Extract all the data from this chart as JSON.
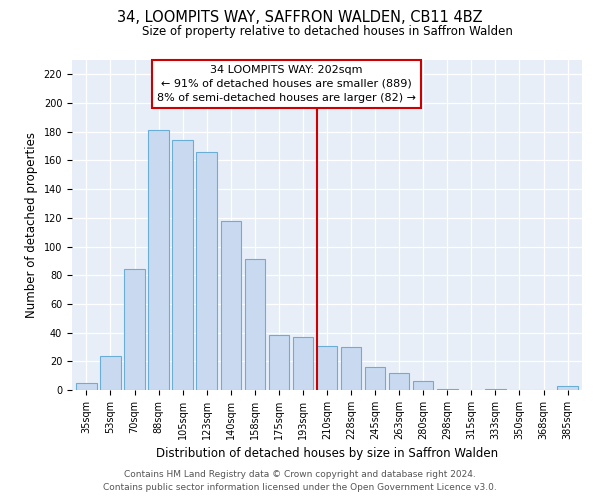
{
  "title": "34, LOOMPITS WAY, SAFFRON WALDEN, CB11 4BZ",
  "subtitle": "Size of property relative to detached houses in Saffron Walden",
  "xlabel": "Distribution of detached houses by size in Saffron Walden",
  "ylabel": "Number of detached properties",
  "bar_labels": [
    "35sqm",
    "53sqm",
    "70sqm",
    "88sqm",
    "105sqm",
    "123sqm",
    "140sqm",
    "158sqm",
    "175sqm",
    "193sqm",
    "210sqm",
    "228sqm",
    "245sqm",
    "263sqm",
    "280sqm",
    "298sqm",
    "315sqm",
    "333sqm",
    "350sqm",
    "368sqm",
    "385sqm"
  ],
  "bar_values": [
    5,
    24,
    84,
    181,
    174,
    166,
    118,
    91,
    38,
    37,
    31,
    30,
    16,
    12,
    6,
    1,
    0,
    1,
    0,
    0,
    3
  ],
  "bar_color": "#c9daf0",
  "bar_edge_color": "#6aaed6",
  "vline_color": "#cc0000",
  "annotation_title": "34 LOOMPITS WAY: 202sqm",
  "annotation_line1": "← 91% of detached houses are smaller (889)",
  "annotation_line2": "8% of semi-detached houses are larger (82) →",
  "ylim": [
    0,
    230
  ],
  "yticks": [
    0,
    20,
    40,
    60,
    80,
    100,
    120,
    140,
    160,
    180,
    200,
    220
  ],
  "footer1": "Contains HM Land Registry data © Crown copyright and database right 2024.",
  "footer2": "Contains public sector information licensed under the Open Government Licence v3.0.",
  "bg_color": "#e8eef7",
  "title_fontsize": 10.5,
  "subtitle_fontsize": 8.5,
  "axis_label_fontsize": 8.5,
  "tick_fontsize": 7,
  "footer_fontsize": 6.5,
  "annot_fontsize": 8
}
